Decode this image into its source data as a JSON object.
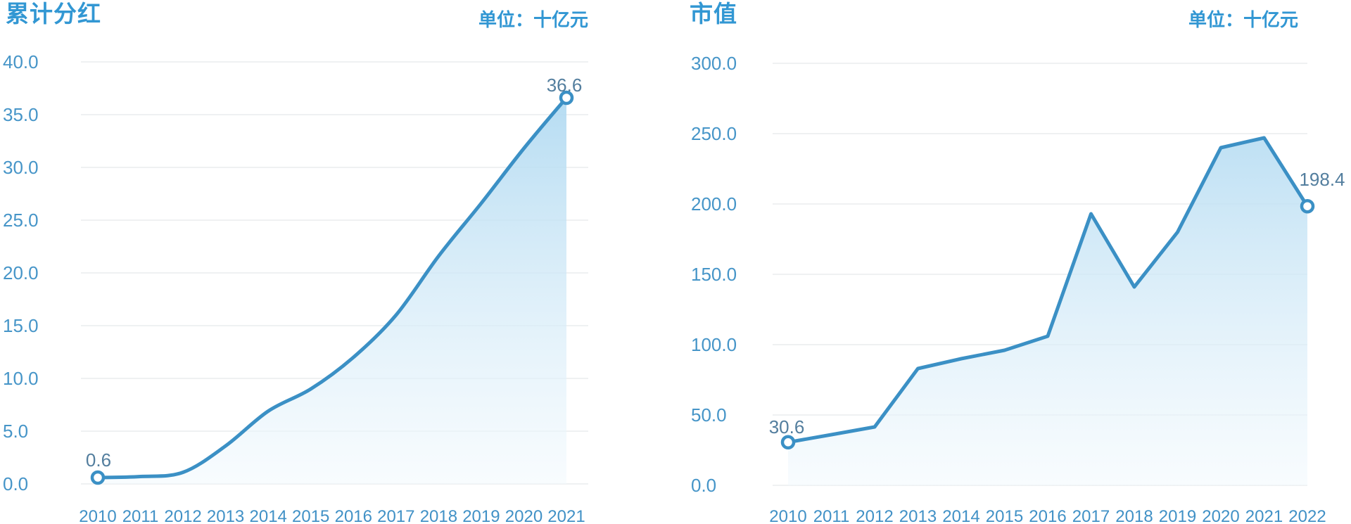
{
  "page": {
    "background": "#ffffff"
  },
  "colors": {
    "title": "#3297d3",
    "unit_label": "#3297d3",
    "tick_label": "#4695c8",
    "axis_label": "#4191c6",
    "data_label": "#537e9e",
    "line": "#3b90c5",
    "area_top": "#a9d6f0",
    "area_bottom": "#f2f9fd",
    "gridline": "#eff1f2",
    "marker_fill": "#ffffff"
  },
  "chart_data": [
    {
      "type": "area",
      "title": "累计分红",
      "unit_label": "单位：十亿元",
      "categories": [
        "2010",
        "2011",
        "2012",
        "2013",
        "2014",
        "2015",
        "2016",
        "2017",
        "2018",
        "2019",
        "2020",
        "2021"
      ],
      "values": [
        0.6,
        0.7,
        1.1,
        3.6,
        6.9,
        9.0,
        12.0,
        16.0,
        21.6,
        26.6,
        31.8,
        36.6
      ],
      "first_point_label": "0.6",
      "last_point_label": "36.6",
      "xlabel": "",
      "ylabel": "",
      "ylim": [
        0,
        40
      ],
      "ytick_step": 5,
      "ytick_format_decimals": 1,
      "grid": "horizontal",
      "legend": "none",
      "line_style": "smooth"
    },
    {
      "type": "area",
      "title": "市值",
      "unit_label": "单位：十亿元",
      "categories": [
        "2010",
        "2011",
        "2012",
        "2013",
        "2014",
        "2015",
        "2016",
        "2017",
        "2018",
        "2019",
        "2020",
        "2021",
        "2022"
      ],
      "values": [
        30.6,
        36.0,
        41.5,
        83.0,
        90.0,
        96.0,
        106.0,
        193.0,
        141.0,
        180.0,
        240.0,
        247.0,
        198.4
      ],
      "first_point_label": "30.6",
      "last_point_label": "198.4",
      "xlabel": "",
      "ylabel": "",
      "ylim": [
        0,
        300
      ],
      "ytick_step": 50,
      "ytick_format_decimals": 1,
      "grid": "horizontal",
      "legend": "none",
      "line_style": "straight"
    }
  ]
}
